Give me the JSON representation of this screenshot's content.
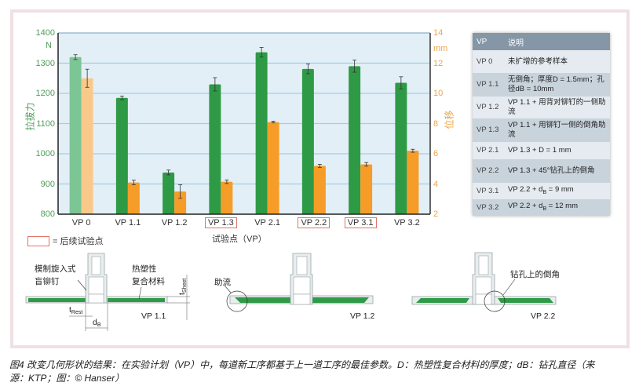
{
  "chart_data": {
    "type": "bar",
    "title": "",
    "xlabel": "试验点（VP）",
    "ylabel": "拉拔力",
    "ylabel_unit": "N",
    "y2label": "位移",
    "y2label_unit": "mm",
    "ylim": [
      800,
      1400
    ],
    "y2lim": [
      2,
      14
    ],
    "yticks": [
      800,
      900,
      1000,
      1100,
      1200,
      1300,
      1400
    ],
    "y2ticks": [
      2,
      4,
      6,
      8,
      10,
      12,
      14
    ],
    "grid": true,
    "categories": [
      "VP 0",
      "VP 1.1",
      "VP 1.2",
      "VP 1.3",
      "VP 2.1",
      "VP 2.2",
      "VP 3.1",
      "VP 3.2"
    ],
    "highlighted_categories": [
      "VP 1.3",
      "VP 2.2",
      "VP 3.1"
    ],
    "series": [
      {
        "name": "拉拔力",
        "axis": "left",
        "unit": "N",
        "color": "#2e9a46",
        "reference_color": "#7cc595",
        "values": [
          1320,
          1185,
          938,
          1230,
          1336,
          1281,
          1290,
          1235
        ],
        "errors": [
          8,
          6,
          8,
          22,
          16,
          16,
          20,
          20
        ]
      },
      {
        "name": "位移",
        "axis": "right",
        "unit": "mm",
        "color": "#f59d28",
        "reference_color": "#f8c98b",
        "values": [
          11.0,
          4.1,
          3.5,
          4.15,
          8.1,
          5.2,
          5.3,
          6.2
        ],
        "errors": [
          0.6,
          0.15,
          0.45,
          0.12,
          0.06,
          0.1,
          0.12,
          0.1
        ]
      }
    ],
    "legend": {
      "position": "bottom-left",
      "entries": [
        "= 后续试验点"
      ]
    }
  },
  "chart": {
    "unit_left": "N",
    "unit_right": "mm",
    "ylabel_left": "拉拔力",
    "ylabel_right": "位移",
    "xlabel": "试验点（VP）",
    "legend_text": "= 后续试验点"
  },
  "table": {
    "headers": [
      "VP",
      "说明"
    ],
    "rows": [
      {
        "vp": "VP 0",
        "desc": "未扩增的参考样本"
      },
      {
        "vp": "VP 1.1",
        "desc": "无倒角；厚度D = 1.5mm；孔径dB = 10mm"
      },
      {
        "vp": "VP 1.2",
        "desc": "VP 1.1 + 用背对铆钉的一侧助流"
      },
      {
        "vp": "VP 1.3",
        "desc": "VP 1.1 + 用铆钉一侧的倒角助流"
      },
      {
        "vp": "VP 2.1",
        "desc": "VP 1.3 + D = 1 mm"
      },
      {
        "vp": "VP 2.2",
        "desc": "VP 1.3 + 45°钻孔上的倒角"
      },
      {
        "vp": "VP 3.1",
        "desc_pre": "VP 2.2 + d",
        "desc_sub": "B",
        "desc_post": " = 9 mm"
      },
      {
        "vp": "VP 3.2",
        "desc_pre": "VP 2.2 + d",
        "desc_sub": "B",
        "desc_post": " = 12 mm"
      }
    ]
  },
  "diagrams": {
    "d1": {
      "rivet_label_1": "模制旋入式",
      "rivet_label_2": "盲铆钉",
      "material_label_1": "热塑性",
      "material_label_2": "复合材料",
      "t_sheet": "t",
      "t_sheet_sub": "Sheet",
      "t_rest": "t",
      "t_rest_sub": "Rest",
      "d_b": "d",
      "d_b_sub": "B",
      "vp": "VP 1.1"
    },
    "d2": {
      "flow_label": "助流",
      "vp": "VP 1.2"
    },
    "d3": {
      "chamfer_label": "钻孔上的倒角",
      "vp": "VP 2.2"
    }
  },
  "caption": {
    "line1": "图4 改变几何形状的结果：在实验计划（VP）中，每道新工序都基于上一道工序的最佳参数。D：热塑性复合材料的厚度；dB：钻孔直径（来",
    "line2": "源：KTP；图：© Hanser）"
  }
}
